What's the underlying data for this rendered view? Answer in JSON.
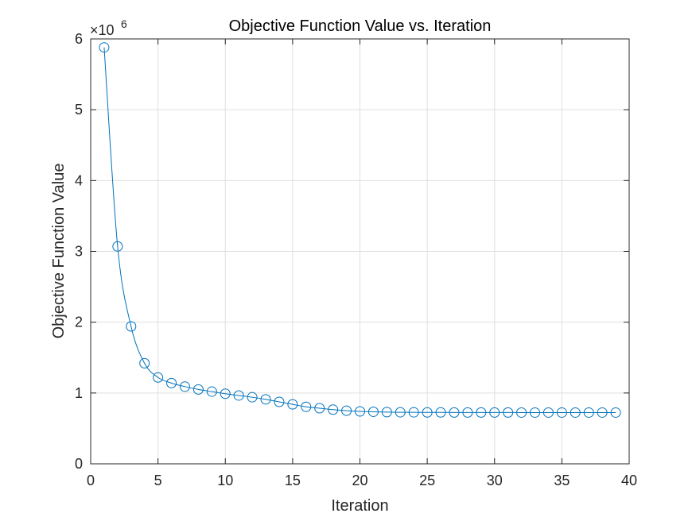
{
  "chart_data": {
    "type": "line",
    "title": "Objective Function Value vs. Iteration",
    "xlabel": "Iteration",
    "ylabel": "Objective Function Value",
    "y_multiplier": {
      "base": "×10",
      "exponent": "6"
    },
    "xlim": [
      0,
      40
    ],
    "ylim": [
      0,
      6
    ],
    "xticks": [
      0,
      5,
      10,
      15,
      20,
      25,
      30,
      35,
      40
    ],
    "yticks": [
      0,
      1,
      2,
      3,
      4,
      5,
      6
    ],
    "grid": true,
    "marker": "circle",
    "line_color": "#0072BD",
    "series": [
      {
        "x": [
          1,
          2,
          3,
          4,
          5,
          6,
          7,
          8,
          9,
          10,
          11,
          12,
          13,
          14,
          15,
          16,
          17,
          18,
          19,
          20,
          21,
          22,
          23,
          24,
          25,
          26,
          27,
          28,
          29,
          30,
          31,
          32,
          33,
          34,
          35,
          36,
          37,
          38,
          39
        ],
        "values": [
          5.88,
          3.07,
          1.94,
          1.42,
          1.22,
          1.14,
          1.09,
          1.05,
          1.02,
          0.99,
          0.965,
          0.94,
          0.91,
          0.875,
          0.84,
          0.805,
          0.785,
          0.765,
          0.75,
          0.74,
          0.735,
          0.73,
          0.728,
          0.727,
          0.726,
          0.726,
          0.725,
          0.725,
          0.725,
          0.725,
          0.725,
          0.724,
          0.724,
          0.724,
          0.724,
          0.724,
          0.724,
          0.724,
          0.724
        ]
      }
    ]
  }
}
